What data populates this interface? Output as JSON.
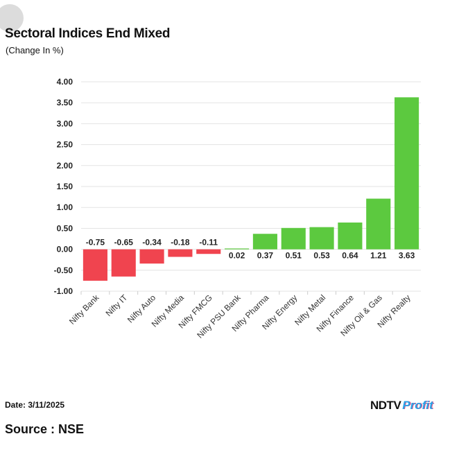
{
  "header": {
    "title": "Sectoral Indices End Mixed",
    "subtitle": "(Change In %)"
  },
  "footer": {
    "date": "Date: 3/11/2025",
    "source": "Source : NSE",
    "logo_left": "NDTV",
    "logo_right": "Profit"
  },
  "colors": {
    "negative": "#f0444f",
    "positive": "#5cc93f",
    "grid": "#e3e3e3",
    "axis_text": "#222222"
  },
  "chart_data": {
    "type": "bar",
    "title": "Sectoral Indices End Mixed",
    "ylabel": "(Change In %)",
    "xlabel": "",
    "ylim": [
      -1.0,
      4.0
    ],
    "yticks": [
      4.0,
      3.5,
      3.0,
      2.5,
      2.0,
      1.5,
      1.0,
      0.5,
      0.0,
      -0.5,
      -1.0
    ],
    "grid": true,
    "legend": "none",
    "categories": [
      "Nifty Bank",
      "Nifty IT",
      "Nifty Auto",
      "Nifty Media",
      "Nifty FMCG",
      "Nifty PSU Bank",
      "Nifty Pharma",
      "Nifty Energy",
      "Nifty Metal",
      "Nifty Finance",
      "Nifty Oil & Gas",
      "Nifty Realty"
    ],
    "values": [
      -0.75,
      -0.65,
      -0.34,
      -0.18,
      -0.11,
      0.02,
      0.37,
      0.51,
      0.53,
      0.64,
      1.21,
      3.63
    ]
  }
}
